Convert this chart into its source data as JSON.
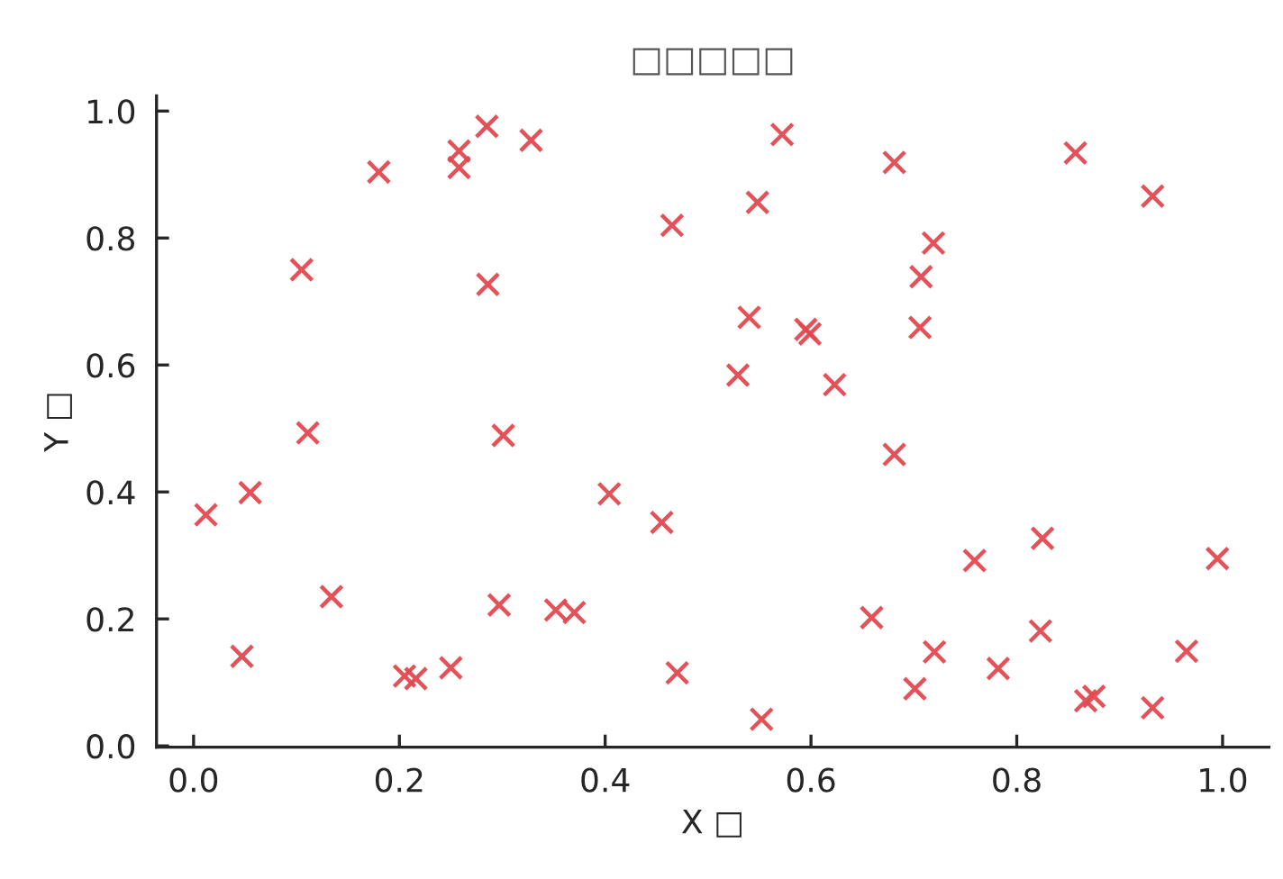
{
  "chart_data": {
    "type": "scatter",
    "title": "□□□□□",
    "xlabel": "X □",
    "ylabel": "Y □",
    "x": [
      0.105,
      0.18,
      0.258,
      0.258,
      0.285,
      0.328,
      0.286,
      0.465,
      0.111,
      0.301,
      0.572,
      0.681,
      0.548,
      0.857,
      0.932,
      0.719,
      0.707,
      0.54,
      0.595,
      0.599,
      0.706,
      0.529,
      0.623,
      0.012,
      0.055,
      0.134,
      0.047,
      0.205,
      0.216,
      0.25,
      0.297,
      0.352,
      0.37,
      0.404,
      0.455,
      0.47,
      0.681,
      0.825,
      0.759,
      0.995,
      0.659,
      0.823,
      0.72,
      0.965,
      0.782,
      0.701,
      0.867,
      0.875,
      0.932,
      0.552
    ],
    "values": [
      0.75,
      0.904,
      0.937,
      0.911,
      0.976,
      0.954,
      0.727,
      0.82,
      0.493,
      0.489,
      0.963,
      0.919,
      0.856,
      0.934,
      0.866,
      0.792,
      0.739,
      0.675,
      0.656,
      0.649,
      0.659,
      0.584,
      0.569,
      0.364,
      0.399,
      0.235,
      0.141,
      0.11,
      0.106,
      0.123,
      0.222,
      0.214,
      0.21,
      0.397,
      0.352,
      0.115,
      0.459,
      0.327,
      0.292,
      0.295,
      0.202,
      0.181,
      0.148,
      0.149,
      0.122,
      0.09,
      0.071,
      0.078,
      0.06,
      0.042
    ],
    "color": "#e34850",
    "marker": "cross",
    "xlim": [
      -0.036,
      1.045
    ],
    "ylim": [
      -0.002,
      1.024
    ],
    "xticks": [
      {
        "value": 0,
        "label": "0.0"
      },
      {
        "value": 0.2,
        "label": "0.2"
      },
      {
        "value": 0.4,
        "label": "0.4"
      },
      {
        "value": 0.6,
        "label": "0.6"
      },
      {
        "value": 0.8,
        "label": "0.8"
      },
      {
        "value": 1,
        "label": "1.0"
      }
    ],
    "yticks": [
      {
        "value": 0,
        "label": "0.0"
      },
      {
        "value": 0.2,
        "label": "0.2"
      },
      {
        "value": 0.4,
        "label": "0.4"
      },
      {
        "value": 0.6,
        "label": "0.6"
      },
      {
        "value": 0.8,
        "label": "0.8"
      },
      {
        "value": 1,
        "label": "1.0"
      }
    ]
  }
}
